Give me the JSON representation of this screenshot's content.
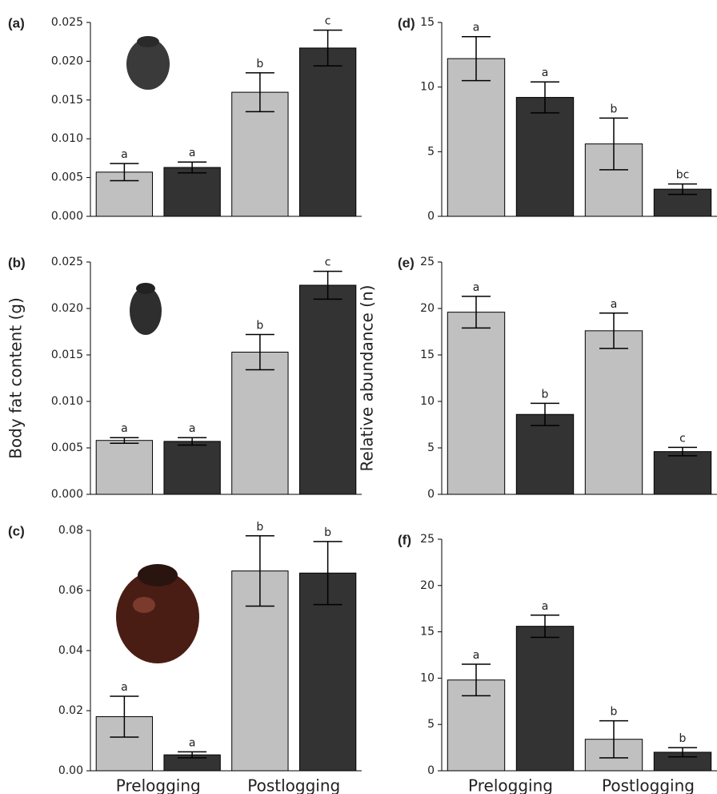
{
  "chart_data": [
    {
      "type": "bar",
      "panel": "(a)",
      "values": [
        0.0057,
        0.0063,
        0.016,
        0.0217
      ],
      "errors": [
        0.0011,
        0.0007,
        0.0025,
        0.0023
      ],
      "letters": [
        "a",
        "a",
        "b",
        "c"
      ],
      "colors": [
        "#c0c0c0",
        "#333333",
        "#c0c0c0",
        "#333333"
      ],
      "ylim": [
        0,
        0.025
      ],
      "yticks": [
        {
          "value": 0,
          "label": "0.000"
        },
        {
          "value": 0.005,
          "label": "0.005"
        },
        {
          "value": 0.01,
          "label": "0.010"
        },
        {
          "value": 0.015,
          "label": "0.015"
        },
        {
          "value": 0.02,
          "label": "0.020"
        },
        {
          "value": 0.025,
          "label": "0.025"
        }
      ]
    },
    {
      "type": "bar",
      "panel": "(b)",
      "ylabel": "Body fat content (g)",
      "values": [
        0.0058,
        0.0057,
        0.0153,
        0.0225
      ],
      "errors": [
        0.0003,
        0.0004,
        0.0019,
        0.0015
      ],
      "letters": [
        "a",
        "a",
        "b",
        "c"
      ],
      "colors": [
        "#c0c0c0",
        "#333333",
        "#c0c0c0",
        "#333333"
      ],
      "ylim": [
        0,
        0.025
      ],
      "yticks": [
        {
          "value": 0,
          "label": "0.000"
        },
        {
          "value": 0.005,
          "label": "0.005"
        },
        {
          "value": 0.01,
          "label": "0.010"
        },
        {
          "value": 0.015,
          "label": "0.015"
        },
        {
          "value": 0.02,
          "label": "0.020"
        },
        {
          "value": 0.025,
          "label": "0.025"
        }
      ]
    },
    {
      "type": "bar",
      "panel": "(c)",
      "groups": [
        "Prelogging",
        "Postlogging"
      ],
      "values": [
        0.018,
        0.0053,
        0.0665,
        0.0658
      ],
      "errors": [
        0.0068,
        0.001,
        0.0117,
        0.0105
      ],
      "letters": [
        "a",
        "a",
        "b",
        "b"
      ],
      "colors": [
        "#c0c0c0",
        "#333333",
        "#c0c0c0",
        "#333333"
      ],
      "ylim": [
        0,
        0.08
      ],
      "yticks": [
        {
          "value": 0,
          "label": "0.00"
        },
        0.02,
        0.04,
        0.06,
        0.08
      ]
    },
    {
      "type": "bar",
      "panel": "(d)",
      "values": [
        12.2,
        9.2,
        5.6,
        2.1
      ],
      "errors": [
        1.7,
        1.2,
        2.0,
        0.4
      ],
      "letters": [
        "a",
        "a",
        "b",
        "bc"
      ],
      "colors": [
        "#c0c0c0",
        "#333333",
        "#c0c0c0",
        "#333333"
      ],
      "ylim": [
        0,
        15
      ],
      "yticks": [
        0,
        5,
        10,
        15
      ]
    },
    {
      "type": "bar",
      "panel": "(e)",
      "ylabel": "Relative abundance (n)",
      "values": [
        19.6,
        8.6,
        17.6,
        4.6
      ],
      "errors": [
        1.7,
        1.2,
        1.9,
        0.45
      ],
      "letters": [
        "a",
        "b",
        "a",
        "c"
      ],
      "colors": [
        "#c0c0c0",
        "#333333",
        "#c0c0c0",
        "#333333"
      ],
      "ylim": [
        0,
        25
      ],
      "yticks": [
        0,
        5,
        10,
        15,
        20,
        25
      ]
    },
    {
      "type": "bar",
      "panel": "(f)",
      "groups": [
        "Prelogging",
        "Postlogging"
      ],
      "values": [
        9.8,
        15.6,
        3.4,
        2.0
      ],
      "errors": [
        1.7,
        1.2,
        2.0,
        0.5
      ],
      "letters": [
        "a",
        "a",
        "b",
        "b"
      ],
      "colors": [
        "#c0c0c0",
        "#333333",
        "#c0c0c0",
        "#333333"
      ],
      "ylim": [
        0,
        25
      ],
      "yticks": [
        0,
        5,
        10,
        15,
        20,
        25
      ]
    }
  ]
}
